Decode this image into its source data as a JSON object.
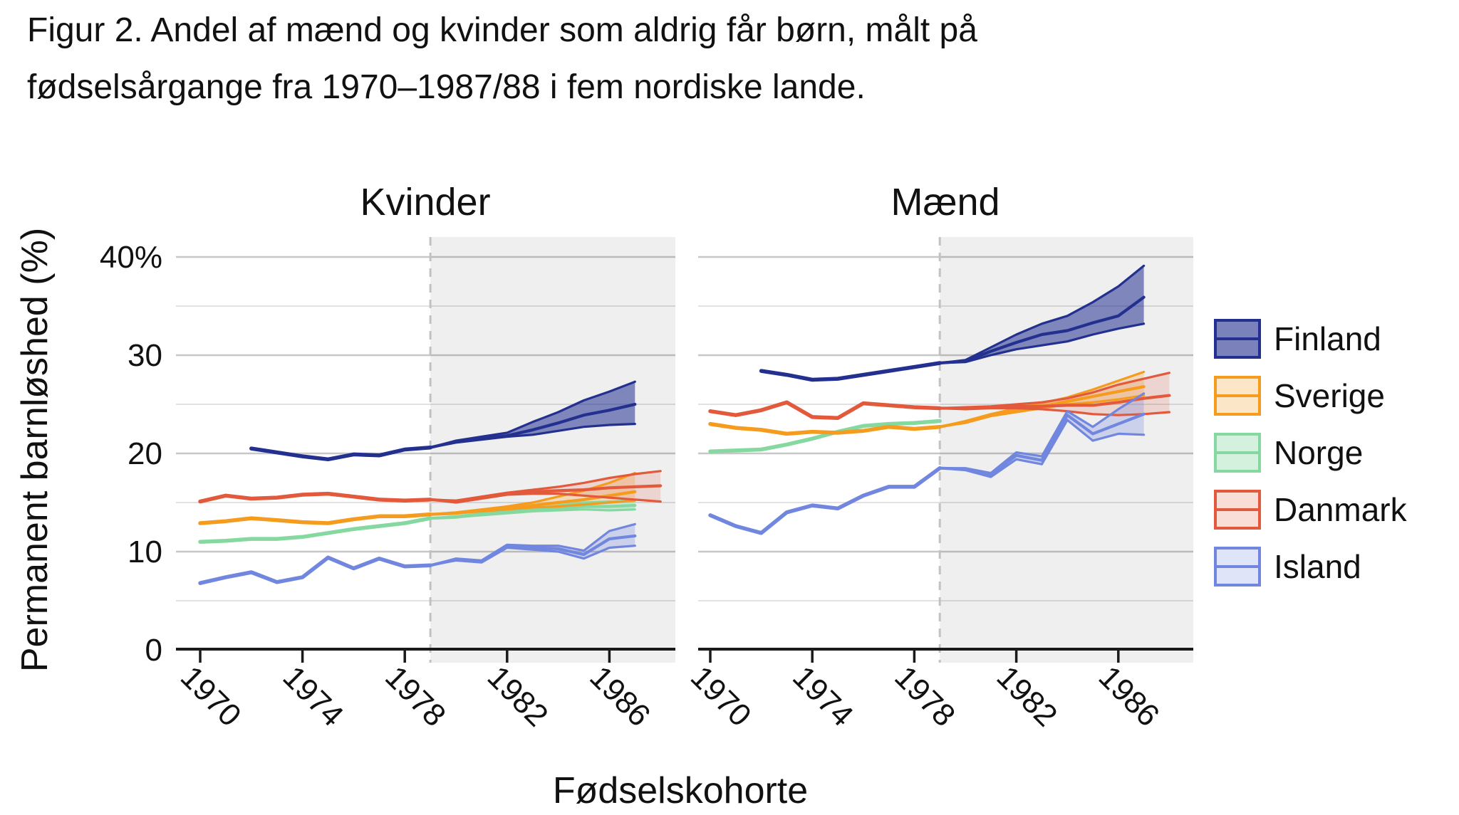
{
  "figure": {
    "title_line1": "Figur 2. Andel af mænd og kvinder som aldrig får børn, målt på",
    "title_line2": "fødselsårgange fra 1970–1987/88 i fem nordiske lande."
  },
  "chart_data": {
    "type": "line",
    "title": "Figur 2. Andel af mænd og kvinder som aldrig får børn, målt på fødselsårgange fra 1970–1987/88 i fem nordiske lande.",
    "xlabel": "Fødselskohorte",
    "ylabel": "Permanent barnløshed (%)",
    "ylim": [
      0,
      42
    ],
    "grid": true,
    "legend_position": "right",
    "y_ticks": [
      {
        "value": 0,
        "label": "0"
      },
      {
        "value": 10,
        "label": "10"
      },
      {
        "value": 20,
        "label": "20"
      },
      {
        "value": 30,
        "label": "30"
      },
      {
        "value": 40,
        "label": "40%"
      }
    ],
    "y_minor_gridlines": [
      5,
      15,
      25,
      35
    ],
    "x_ticks": [
      1970,
      1974,
      1978,
      1982,
      1986
    ],
    "projection_start_year": 1979,
    "projection_band_color": "rgba(0,0,0,0.062)",
    "dashed_line_color": "#c2c2c2",
    "major_grid_color": "#c7c7c7",
    "minor_grid_color": "#e2e2e2",
    "axis_color": "#1a1a1a",
    "countries": [
      {
        "name": "Finland",
        "line_color": "#23308f",
        "band_color": "rgba(35,48,143,0.55)",
        "legend_fill": "#7b81ba"
      },
      {
        "name": "Sverige",
        "line_color": "#f59b1e",
        "band_color": "rgba(245,155,30,0.25)",
        "legend_fill": "#fbe6c8"
      },
      {
        "name": "Norge",
        "line_color": "#85d9a0",
        "band_color": "rgba(133,217,160,0.35)",
        "legend_fill": "#d3f1dc"
      },
      {
        "name": "Danmark",
        "line_color": "#e2593b",
        "band_color": "rgba(226,89,59,0.17)",
        "legend_fill": "#f8ded6"
      },
      {
        "name": "Island",
        "line_color": "#7186de",
        "band_color": "rgba(113,134,222,0.28)",
        "legend_fill": "#dfe4f8"
      }
    ],
    "panels": [
      {
        "title": "Kvinder",
        "series": [
          {
            "country": "Finland",
            "observed": {
              "start_year": 1972,
              "values": [
                20.5,
                20.1,
                19.7,
                19.4,
                19.9,
                19.8,
                20.4,
                20.6
              ]
            },
            "projection": {
              "start_year": 1979,
              "central": [
                20.6,
                21.2,
                21.5,
                21.8,
                22.4,
                23.1,
                23.9,
                24.4,
                25.0
              ],
              "upper": [
                20.6,
                21.3,
                21.7,
                22.1,
                23.2,
                24.2,
                25.4,
                26.3,
                27.3
              ],
              "lower": [
                20.6,
                21.1,
                21.4,
                21.7,
                21.9,
                22.3,
                22.7,
                22.9,
                23.0
              ]
            }
          },
          {
            "country": "Sverige",
            "observed": {
              "start_year": 1970,
              "values": [
                12.9,
                13.1,
                13.4,
                13.2,
                13.0,
                12.9,
                13.3,
                13.6,
                13.6,
                13.8
              ]
            },
            "projection": {
              "start_year": 1979,
              "central": [
                13.8,
                13.9,
                14.2,
                14.4,
                14.7,
                15.0,
                15.3,
                15.7,
                16.1
              ],
              "upper": [
                13.8,
                14.0,
                14.3,
                14.6,
                15.0,
                15.6,
                16.2,
                17.0,
                18.0
              ],
              "lower": [
                13.8,
                13.9,
                14.1,
                14.3,
                14.5,
                14.6,
                14.8,
                15.0,
                15.2
              ]
            }
          },
          {
            "country": "Norge",
            "observed": {
              "start_year": 1970,
              "values": [
                11.0,
                11.1,
                11.3,
                11.3,
                11.5,
                11.9,
                12.3,
                12.6,
                12.9,
                13.4
              ]
            },
            "projection": {
              "start_year": 1979,
              "central": [
                13.4,
                13.5,
                13.8,
                14.0,
                14.2,
                14.4,
                14.6,
                14.6,
                14.7
              ],
              "upper": [
                13.4,
                13.6,
                13.9,
                14.1,
                14.4,
                14.7,
                15.0,
                15.1,
                15.2
              ],
              "lower": [
                13.4,
                13.5,
                13.7,
                13.9,
                14.1,
                14.2,
                14.3,
                14.2,
                14.3
              ]
            }
          },
          {
            "country": "Danmark",
            "observed": {
              "start_year": 1970,
              "values": [
                15.1,
                15.7,
                15.4,
                15.5,
                15.8,
                15.9,
                15.6,
                15.3,
                15.2,
                15.3
              ]
            },
            "projection": {
              "start_year": 1979,
              "central": [
                15.3,
                15.1,
                15.5,
                15.9,
                16.1,
                16.2,
                16.3,
                16.5,
                16.6,
                16.7
              ],
              "upper": [
                15.3,
                15.2,
                15.6,
                16.0,
                16.3,
                16.6,
                17.0,
                17.5,
                17.9,
                18.2
              ],
              "lower": [
                15.3,
                15.0,
                15.4,
                15.8,
                15.9,
                15.9,
                15.7,
                15.5,
                15.3,
                15.1
              ]
            }
          },
          {
            "country": "Island",
            "observed": {
              "start_year": 1970,
              "values": [
                6.8,
                7.4,
                7.9,
                6.9,
                7.4,
                9.4,
                8.3,
                9.3,
                8.5,
                8.6
              ]
            },
            "projection": {
              "start_year": 1979,
              "central": [
                8.6,
                9.2,
                9.0,
                10.6,
                10.4,
                10.3,
                9.7,
                11.3,
                11.6
              ],
              "upper": [
                8.6,
                9.3,
                9.1,
                10.7,
                10.6,
                10.6,
                10.1,
                12.1,
                12.8
              ],
              "lower": [
                8.6,
                9.1,
                8.9,
                10.4,
                10.2,
                10.0,
                9.3,
                10.4,
                10.6
              ]
            }
          }
        ]
      },
      {
        "title": "Mænd",
        "series": [
          {
            "country": "Finland",
            "observed": {
              "start_year": 1972,
              "values": [
                28.4,
                28.0,
                27.5,
                27.6,
                28.0,
                28.4,
                28.8,
                29.2
              ]
            },
            "projection": {
              "start_year": 1979,
              "central": [
                29.2,
                29.4,
                30.4,
                31.3,
                32.1,
                32.5,
                33.3,
                34.0,
                35.9
              ],
              "upper": [
                29.2,
                29.5,
                30.8,
                32.1,
                33.2,
                34.0,
                35.4,
                37.0,
                39.1
              ],
              "lower": [
                29.2,
                29.3,
                30.0,
                30.6,
                31.0,
                31.4,
                32.1,
                32.7,
                33.2
              ]
            }
          },
          {
            "country": "Sverige",
            "observed": {
              "start_year": 1970,
              "values": [
                23.0,
                22.6,
                22.4,
                22.0,
                22.2,
                22.1,
                22.3,
                22.7,
                22.5,
                22.7
              ]
            },
            "projection": {
              "start_year": 1979,
              "central": [
                22.7,
                23.2,
                23.9,
                24.4,
                24.8,
                25.3,
                25.8,
                26.3,
                26.8
              ],
              "upper": [
                22.7,
                23.3,
                24.0,
                24.6,
                25.1,
                25.7,
                26.5,
                27.4,
                28.3
              ],
              "lower": [
                22.7,
                23.1,
                23.8,
                24.2,
                24.6,
                25.0,
                25.2,
                25.5,
                25.9
              ]
            }
          },
          {
            "country": "Norge",
            "observed": {
              "start_year": 1970,
              "values": [
                20.2,
                20.3,
                20.4,
                20.9,
                21.5,
                22.2,
                22.8,
                23.0,
                23.1,
                23.3
              ]
            },
            "projection": null
          },
          {
            "country": "Danmark",
            "observed": {
              "start_year": 1970,
              "values": [
                24.3,
                23.9,
                24.4,
                25.2,
                23.7,
                23.6,
                25.1,
                24.9,
                24.7,
                24.6
              ]
            },
            "projection": {
              "start_year": 1979,
              "central": [
                24.6,
                24.6,
                24.7,
                24.8,
                24.8,
                24.9,
                24.9,
                25.2,
                25.6,
                25.9
              ],
              "upper": [
                24.6,
                24.7,
                24.8,
                25.0,
                25.2,
                25.6,
                26.2,
                27.0,
                27.6,
                28.2
              ],
              "lower": [
                24.6,
                24.5,
                24.6,
                24.6,
                24.5,
                24.3,
                24.0,
                23.9,
                24.0,
                24.2
              ]
            }
          },
          {
            "country": "Island",
            "observed": {
              "start_year": 1970,
              "values": [
                13.7,
                12.6,
                11.9,
                14.0,
                14.7,
                14.4,
                15.7,
                16.6,
                16.6,
                18.5
              ]
            },
            "projection": {
              "start_year": 1979,
              "central": [
                18.5,
                18.4,
                17.8,
                19.8,
                19.3,
                23.9,
                22.0,
                23.0,
                24.0
              ],
              "upper": [
                18.5,
                18.5,
                18.0,
                20.1,
                19.7,
                24.3,
                22.7,
                24.5,
                26.1
              ],
              "lower": [
                18.5,
                18.3,
                17.6,
                19.4,
                18.9,
                23.4,
                21.3,
                22.0,
                21.9
              ]
            }
          }
        ]
      }
    ]
  }
}
